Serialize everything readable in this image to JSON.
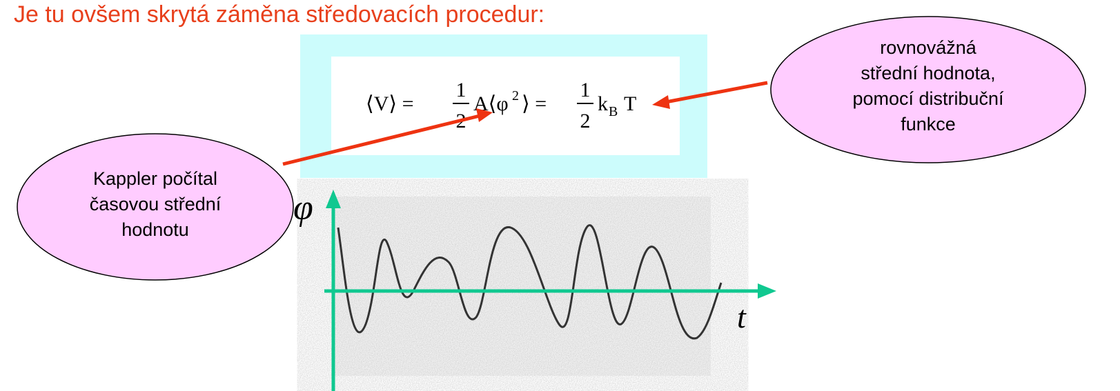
{
  "title": "Je tu ovšem skrytá záměna středovacích procedur:",
  "formula": {
    "lhs": "⟨V⟩ =",
    "frac1": {
      "num": "1",
      "den": "2"
    },
    "mid": "A⟨φ",
    "exp": "2",
    "eq": "⟩ =",
    "frac2": {
      "num": "1",
      "den": "2"
    },
    "k": "k",
    "sub": "B",
    "T": "T"
  },
  "right_callout": {
    "lines": [
      "rovnovážná",
      "střední hodnota,",
      "pomocí distribuční",
      "funkce"
    ]
  },
  "left_callout": {
    "lines": [
      "Kappler počítal",
      "časovou střední",
      "hodnotu"
    ]
  },
  "graph": {
    "y_label": "φ",
    "x_label": "t"
  }
}
